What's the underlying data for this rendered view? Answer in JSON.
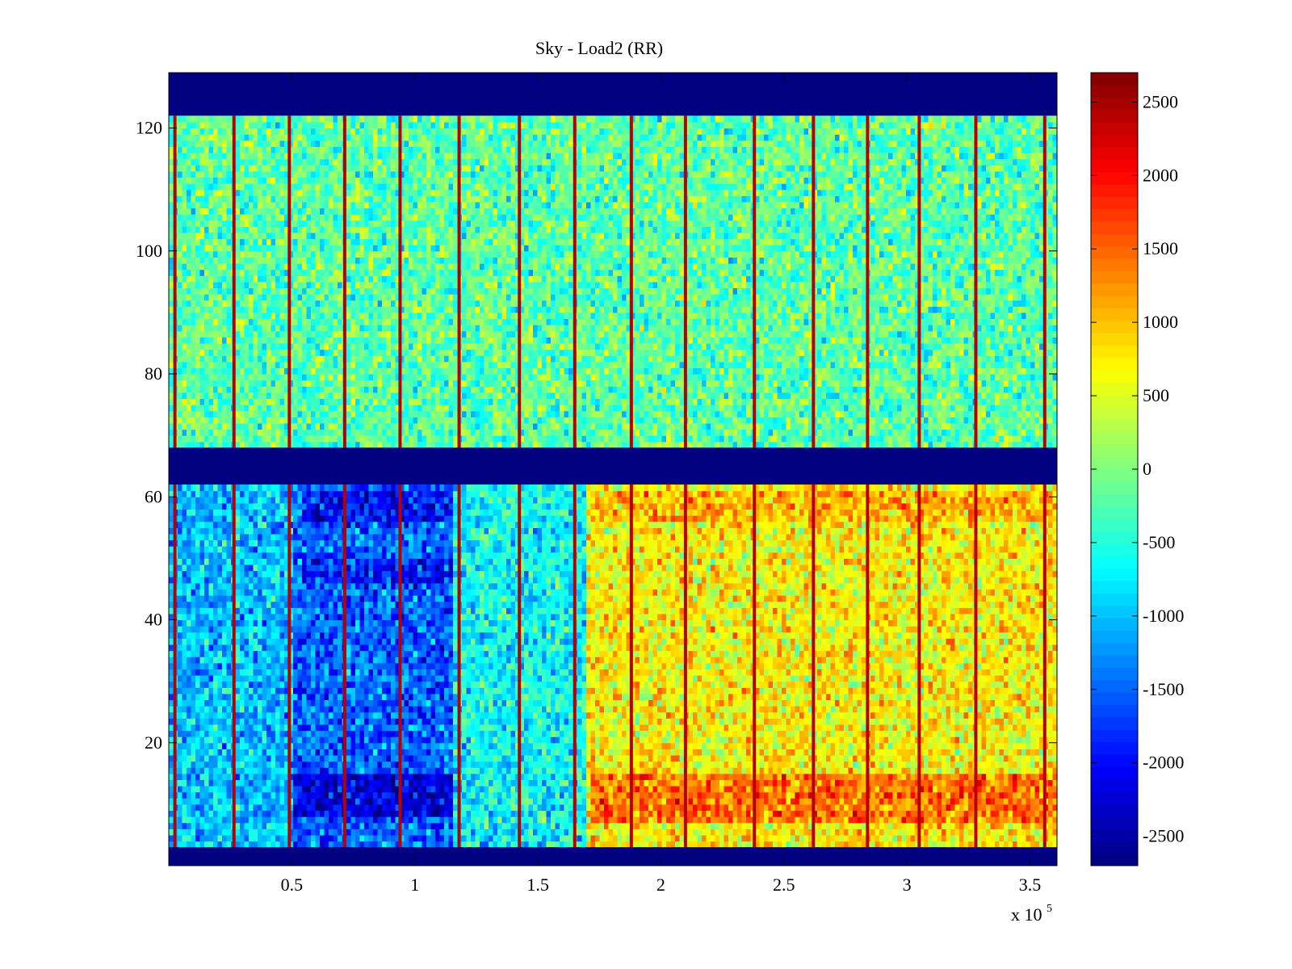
{
  "chart_data": {
    "type": "heatmap",
    "title": "Sky - Load2 (RR)",
    "xlabel": "",
    "ylabel": "",
    "xlim": [
      0,
      361000
    ],
    "ylim": [
      0,
      129
    ],
    "x_ticks": [
      {
        "value": 50000,
        "label": "0.5"
      },
      {
        "value": 100000,
        "label": "1"
      },
      {
        "value": 150000,
        "label": "1.5"
      },
      {
        "value": 200000,
        "label": "2"
      },
      {
        "value": 250000,
        "label": "2.5"
      },
      {
        "value": 300000,
        "label": "3"
      },
      {
        "value": 350000,
        "label": "3.5"
      }
    ],
    "x_multiplier": {
      "base": "x 10",
      "exponent": "5"
    },
    "y_ticks": [
      {
        "value": 20,
        "label": "20"
      },
      {
        "value": 40,
        "label": "40"
      },
      {
        "value": 60,
        "label": "60"
      },
      {
        "value": 80,
        "label": "80"
      },
      {
        "value": 100,
        "label": "100"
      },
      {
        "value": 120,
        "label": "120"
      }
    ],
    "colormap": "jet",
    "clim": [
      -2700,
      2700
    ],
    "colorbar_ticks": [
      {
        "value": 2500,
        "label": "2500"
      },
      {
        "value": 2000,
        "label": "2000"
      },
      {
        "value": 1500,
        "label": "1500"
      },
      {
        "value": 1000,
        "label": "1000"
      },
      {
        "value": 500,
        "label": "500"
      },
      {
        "value": 0,
        "label": "0"
      },
      {
        "value": -500,
        "label": "-500"
      },
      {
        "value": -1000,
        "label": "-1000"
      },
      {
        "value": -1500,
        "label": "-1500"
      },
      {
        "value": -2000,
        "label": "-2000"
      },
      {
        "value": -2500,
        "label": "-2500"
      }
    ],
    "masked_channel_bands": [
      {
        "from": 0,
        "to": 3,
        "value": -2700
      },
      {
        "from": 62,
        "to": 68,
        "value": -2700
      },
      {
        "from": 122,
        "to": 129,
        "value": -2700
      }
    ],
    "data_bands": [
      {
        "from": 3,
        "to": 62,
        "name": "lower"
      },
      {
        "from": 68,
        "to": 122,
        "name": "upper"
      }
    ],
    "spike_columns_x": [
      2500,
      26500,
      49000,
      71500,
      94000,
      118000,
      142500,
      165000,
      188000,
      210000,
      238000,
      262000,
      284000,
      305000,
      328000,
      356000
    ],
    "spike_value": 2400,
    "upper_band_mean": -200,
    "lower_band_profile": [
      {
        "x_from": 0,
        "x_to": 50000,
        "value": -1000
      },
      {
        "x_from": 50000,
        "x_to": 115000,
        "value": -1500
      },
      {
        "x_from": 115000,
        "x_to": 170000,
        "value": -650
      },
      {
        "x_from": 170000,
        "x_to": 361000,
        "value": 700
      }
    ],
    "lower_band_deep_rows": [
      {
        "y_from": 8,
        "y_to": 15,
        "x_from": 50000,
        "x_to": 115000,
        "value": -2200
      },
      {
        "y_from": 46,
        "y_to": 50,
        "x_from": 55000,
        "x_to": 115000,
        "value": -1900
      },
      {
        "y_from": 56,
        "y_to": 61,
        "x_from": 55000,
        "x_to": 115000,
        "value": -2000
      }
    ],
    "lower_band_hot_rows": [
      {
        "y_from": 7,
        "y_to": 15,
        "x_from": 172000,
        "x_to": 361000,
        "value": 1400
      },
      {
        "y_from": 56,
        "y_to": 61,
        "x_from": 172000,
        "x_to": 361000,
        "value": 1100
      }
    ]
  }
}
